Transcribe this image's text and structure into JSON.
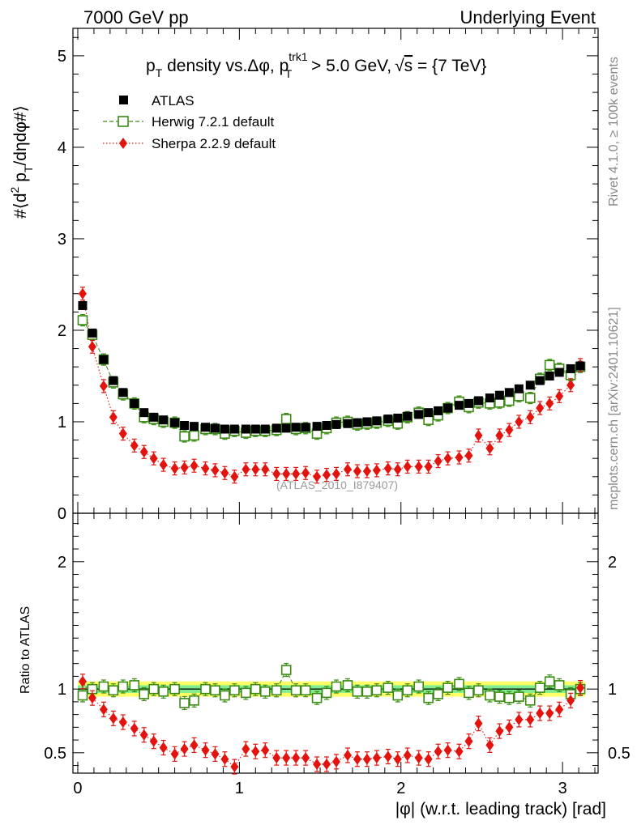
{
  "header": {
    "left": "7000 GeV pp",
    "right": "Underlying Event"
  },
  "side_labels": {
    "rivet": "Rivet 4.1.0, ≥ 100k events",
    "mcplots": "mcplots.cern.ch [arXiv:2401.10621]"
  },
  "analysis_label": "(ATLAS_2010_I879407)",
  "colors": {
    "atlas": "#000000",
    "herwig": "#3a8a14",
    "sherpa": "#e3130e",
    "band_inner": "#80ee90",
    "band_outer": "#ffff66"
  },
  "chart_data": [
    {
      "type": "scatter",
      "panel": "main",
      "title": "p_T density vs. Δφ, p_T^trk1 > 5.0 GeV, √s = {7 TeV}",
      "title_parts": {
        "a": "p",
        "a_sub": "T",
        "b": " density vs.Δφ, p",
        "b_sup": "trk1",
        "b_sub": "T",
        "c": " > 5.0 GeV,",
        "sqrt": "√",
        "s": "s",
        "d": " = {7 TeV}"
      },
      "ylabel": "#⟨d² p_T/dηdφ#⟩",
      "ylabel_parts": {
        "a": "#⟨d",
        "sup": "2",
        "b": " p",
        "sub": "T",
        "c": "/dηdφ#⟩"
      },
      "ylim": [
        0,
        5.3
      ],
      "xlim": [
        -0.03,
        3.22
      ],
      "y_ticks": [
        0,
        1,
        2,
        3,
        4,
        5
      ],
      "y_tick_labels": [
        "0",
        "1",
        "2",
        "3",
        "4",
        "5"
      ],
      "legend": [
        {
          "name": "ATLAS",
          "marker": "filled-square"
        },
        {
          "name": "Herwig 7.2.1 default",
          "marker": "open-square"
        },
        {
          "name": "Sherpa 2.2.9 default",
          "marker": "filled-diamond"
        }
      ],
      "x": [
        0.03,
        0.09,
        0.16,
        0.22,
        0.28,
        0.35,
        0.41,
        0.47,
        0.53,
        0.6,
        0.66,
        0.72,
        0.79,
        0.85,
        0.91,
        0.97,
        1.04,
        1.1,
        1.16,
        1.23,
        1.29,
        1.35,
        1.41,
        1.48,
        1.54,
        1.6,
        1.67,
        1.73,
        1.79,
        1.85,
        1.92,
        1.98,
        2.04,
        2.11,
        2.17,
        2.23,
        2.29,
        2.36,
        2.42,
        2.48,
        2.55,
        2.61,
        2.67,
        2.73,
        2.8,
        2.86,
        2.92,
        2.98,
        3.05,
        3.11
      ],
      "series": [
        {
          "name": "ATLAS",
          "values": [
            2.27,
            1.97,
            1.68,
            1.45,
            1.32,
            1.2,
            1.1,
            1.05,
            1.02,
            0.99,
            0.96,
            0.95,
            0.94,
            0.93,
            0.92,
            0.92,
            0.92,
            0.92,
            0.92,
            0.93,
            0.93,
            0.94,
            0.94,
            0.95,
            0.96,
            0.97,
            0.98,
            0.99,
            1.0,
            1.01,
            1.03,
            1.04,
            1.06,
            1.08,
            1.1,
            1.12,
            1.15,
            1.18,
            1.2,
            1.23,
            1.26,
            1.29,
            1.32,
            1.36,
            1.4,
            1.45,
            1.5,
            1.54,
            1.58,
            1.61
          ]
        },
        {
          "name": "Herwig 7.2.1 default",
          "values": [
            2.11,
            1.95,
            1.68,
            1.43,
            1.3,
            1.2,
            1.05,
            1.03,
            1.0,
            0.99,
            0.84,
            0.85,
            0.92,
            0.92,
            0.87,
            0.9,
            0.88,
            0.9,
            0.9,
            0.91,
            1.03,
            0.92,
            0.93,
            0.87,
            0.93,
            0.99,
            1.0,
            0.97,
            0.98,
            0.99,
            1.01,
            0.98,
            1.05,
            1.1,
            1.02,
            1.07,
            1.15,
            1.22,
            1.16,
            1.21,
            1.2,
            1.21,
            1.23,
            1.28,
            1.26,
            1.47,
            1.62,
            1.58,
            1.51,
            1.6
          ]
        },
        {
          "name": "Sherpa 2.2.9 default",
          "values": [
            2.4,
            1.82,
            1.39,
            1.05,
            0.87,
            0.74,
            0.67,
            0.6,
            0.53,
            0.49,
            0.5,
            0.52,
            0.49,
            0.47,
            0.44,
            0.4,
            0.48,
            0.48,
            0.48,
            0.43,
            0.43,
            0.43,
            0.44,
            0.4,
            0.42,
            0.43,
            0.48,
            0.46,
            0.46,
            0.47,
            0.49,
            0.48,
            0.51,
            0.51,
            0.51,
            0.57,
            0.6,
            0.61,
            0.63,
            0.85,
            0.71,
            0.85,
            0.91,
            1.0,
            1.05,
            1.15,
            1.2,
            1.28,
            1.4,
            1.62
          ]
        }
      ]
    },
    {
      "type": "scatter",
      "panel": "ratio",
      "ylabel": "Ratio to ATLAS",
      "ylim": [
        0.34,
        2.38
      ],
      "xlim": [
        -0.03,
        3.22
      ],
      "xlabel": "|φ| (w.r.t. leading track) [rad]",
      "x_ticks": [
        0,
        1,
        2,
        3
      ],
      "x_tick_labels": [
        "0",
        "1",
        "2",
        "3"
      ],
      "y_ticks": [
        0.5,
        1,
        2
      ],
      "y_tick_labels": [
        "0.5",
        "1",
        "2"
      ],
      "band_inner": [
        0.97,
        1.03
      ],
      "band_outer": [
        0.94,
        1.06
      ],
      "x": [
        0.03,
        0.09,
        0.16,
        0.22,
        0.28,
        0.35,
        0.41,
        0.47,
        0.53,
        0.6,
        0.66,
        0.72,
        0.79,
        0.85,
        0.91,
        0.97,
        1.04,
        1.1,
        1.16,
        1.23,
        1.29,
        1.35,
        1.41,
        1.48,
        1.54,
        1.6,
        1.67,
        1.73,
        1.79,
        1.85,
        1.92,
        1.98,
        2.04,
        2.11,
        2.17,
        2.23,
        2.29,
        2.36,
        2.42,
        2.48,
        2.55,
        2.61,
        2.67,
        2.73,
        2.8,
        2.86,
        2.92,
        2.98,
        3.05,
        3.11
      ],
      "series": [
        {
          "name": "Herwig 7.2.1 default",
          "values": [
            0.95,
            1.0,
            1.02,
            0.99,
            1.02,
            1.03,
            0.96,
            1.0,
            0.98,
            1.0,
            0.89,
            0.91,
            1.0,
            0.99,
            0.95,
            0.99,
            0.97,
            1.0,
            0.98,
            0.99,
            1.15,
            0.99,
            0.99,
            0.93,
            0.97,
            1.02,
            1.03,
            0.98,
            0.98,
            0.99,
            1.01,
            0.95,
            0.99,
            1.02,
            0.93,
            0.96,
            1.01,
            1.04,
            0.97,
            0.99,
            0.95,
            0.94,
            0.93,
            0.94,
            0.91,
            1.01,
            1.06,
            1.03,
            0.96,
            1.0
          ]
        },
        {
          "name": "Sherpa 2.2.9 default",
          "values": [
            1.06,
            0.93,
            0.84,
            0.77,
            0.74,
            0.69,
            0.64,
            0.59,
            0.54,
            0.49,
            0.53,
            0.56,
            0.52,
            0.49,
            0.45,
            0.39,
            0.53,
            0.51,
            0.52,
            0.46,
            0.46,
            0.46,
            0.46,
            0.41,
            0.41,
            0.43,
            0.48,
            0.45,
            0.45,
            0.46,
            0.47,
            0.45,
            0.48,
            0.46,
            0.45,
            0.51,
            0.52,
            0.51,
            0.59,
            0.73,
            0.56,
            0.67,
            0.7,
            0.76,
            0.76,
            0.81,
            0.81,
            0.84,
            0.91,
            1.01
          ]
        }
      ]
    }
  ]
}
